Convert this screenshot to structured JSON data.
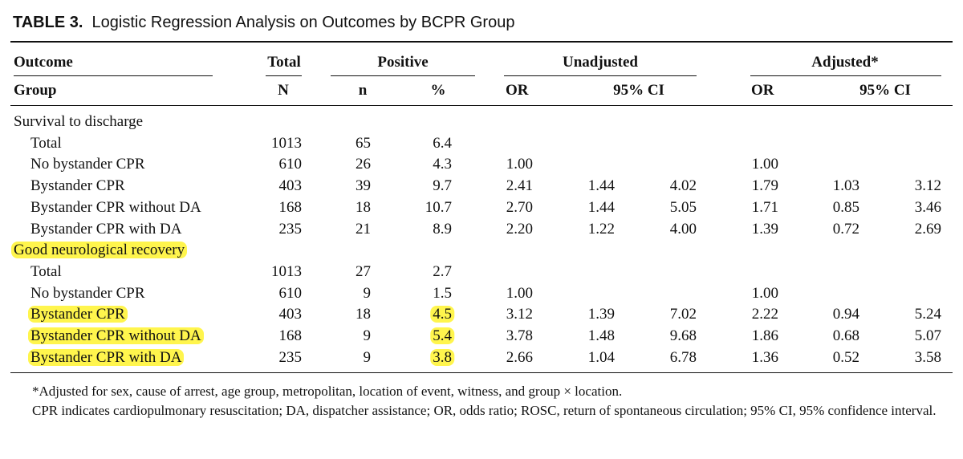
{
  "title": {
    "label": "TABLE 3.",
    "text": "Logistic Regression Analysis on Outcomes by BCPR Group"
  },
  "headers": {
    "outcome": "Outcome",
    "group": "Group",
    "total": "Total",
    "positive": "Positive",
    "unadjusted": "Unadjusted",
    "adjusted": "Adjusted*",
    "n_total": "N",
    "n_pos": "n",
    "pct": "%",
    "or_unadj": "OR",
    "ci_unadj": "95% CI",
    "or_adj": "OR",
    "ci_adj": "95% CI"
  },
  "highlight_color": "#fff54d",
  "rows": [
    {
      "group": "Survival to discharge",
      "section": true
    },
    {
      "group": "Total",
      "N": "1013",
      "n": "65",
      "pct": "6.4"
    },
    {
      "group": "No bystander CPR",
      "N": "610",
      "n": "26",
      "pct": "4.3",
      "or_u": "1.00",
      "or_a": "1.00"
    },
    {
      "group": "Bystander CPR",
      "N": "403",
      "n": "39",
      "pct": "9.7",
      "or_u": "2.41",
      "lo_u": "1.44",
      "hi_u": "4.02",
      "or_a": "1.79",
      "lo_a": "1.03",
      "hi_a": "3.12"
    },
    {
      "group": "Bystander CPR without DA",
      "N": "168",
      "n": "18",
      "pct": "10.7",
      "or_u": "2.70",
      "lo_u": "1.44",
      "hi_u": "5.05",
      "or_a": "1.71",
      "lo_a": "0.85",
      "hi_a": "3.46"
    },
    {
      "group": "Bystander CPR with DA",
      "N": "235",
      "n": "21",
      "pct": "8.9",
      "or_u": "2.20",
      "lo_u": "1.22",
      "hi_u": "4.00",
      "or_a": "1.39",
      "lo_a": "0.72",
      "hi_a": "2.69"
    },
    {
      "group": "Good neurological recovery",
      "section": true,
      "hl_group": true
    },
    {
      "group": "Total",
      "N": "1013",
      "n": "27",
      "pct": "2.7"
    },
    {
      "group": "No bystander CPR",
      "N": "610",
      "n": "9",
      "pct": "1.5",
      "or_u": "1.00",
      "or_a": "1.00"
    },
    {
      "group": "Bystander CPR",
      "N": "403",
      "n": "18",
      "pct": "4.5",
      "or_u": "3.12",
      "lo_u": "1.39",
      "hi_u": "7.02",
      "or_a": "2.22",
      "lo_a": "0.94",
      "hi_a": "5.24",
      "hl_group": true,
      "hl_pct": true
    },
    {
      "group": "Bystander CPR without DA",
      "N": "168",
      "n": "9",
      "pct": "5.4",
      "or_u": "3.78",
      "lo_u": "1.48",
      "hi_u": "9.68",
      "or_a": "1.86",
      "lo_a": "0.68",
      "hi_a": "5.07",
      "hl_group": true,
      "hl_pct": true
    },
    {
      "group": "Bystander CPR with DA",
      "N": "235",
      "n": "9",
      "pct": "3.8",
      "or_u": "2.66",
      "lo_u": "1.04",
      "hi_u": "6.78",
      "or_a": "1.36",
      "lo_a": "0.52",
      "hi_a": "3.58",
      "hl_group": true,
      "hl_pct": true
    }
  ],
  "footnotes": {
    "adjusted": "*Adjusted for sex, cause of arrest, age group, metropolitan, location of event, witness, and group × location.",
    "abbrev": "CPR indicates cardiopulmonary resuscitation; DA, dispatcher assistance; OR, odds ratio; ROSC, return of spontaneous circulation; 95% CI, 95% confidence interval."
  }
}
